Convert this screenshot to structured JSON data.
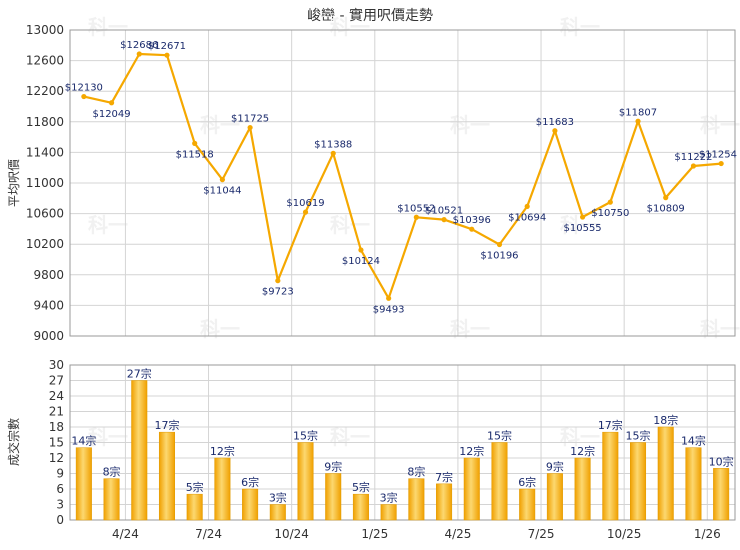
{
  "chart_data": [
    {
      "type": "line",
      "title": "峻巒 - 實用呎價走勢",
      "ylabel": "平均呎價",
      "ylim": [
        9000,
        13000
      ],
      "yticks": [
        9000,
        9400,
        9800,
        10200,
        10600,
        11000,
        11400,
        11800,
        12200,
        12600,
        13000
      ],
      "xticks": [
        "4/24",
        "7/24",
        "10/24",
        "1/25",
        "4/25",
        "7/25",
        "10/25",
        "1/26"
      ],
      "color": "#f5a800",
      "watermark": "科一",
      "values": [
        12130,
        12049,
        12686,
        12671,
        11518,
        11044,
        11725,
        9723,
        10619,
        11388,
        10124,
        9493,
        10552,
        10521,
        10396,
        10196,
        10694,
        11683,
        10555,
        10750,
        11807,
        10809,
        11222,
        11254
      ],
      "labels": [
        "$12130",
        "$12049",
        "$12686",
        "$12671",
        "$11518",
        "$11044",
        "$11725",
        "$9723",
        "$10619",
        "$11388",
        "$10124",
        "$9493",
        "$10552",
        "$10521",
        "$10396",
        "$10196",
        "$10694",
        "$11683",
        "$10555",
        "$10750",
        "$11807",
        "$10809",
        "$11222",
        "$11254"
      ]
    },
    {
      "type": "bar",
      "ylabel": "成交宗數",
      "ylim": [
        0,
        30
      ],
      "yticks": [
        0,
        3,
        6,
        9,
        12,
        15,
        18,
        21,
        24,
        27,
        30
      ],
      "xticks": [
        "4/24",
        "7/24",
        "10/24",
        "1/25",
        "4/25",
        "7/25",
        "10/25",
        "1/26"
      ],
      "color": "#f5a800",
      "values": [
        14,
        8,
        27,
        17,
        5,
        12,
        6,
        3,
        15,
        9,
        5,
        3,
        8,
        7,
        12,
        15,
        6,
        9,
        12,
        17,
        15,
        18,
        14,
        10
      ],
      "labels": [
        "14宗",
        "8宗",
        "27宗",
        "17宗",
        "5宗",
        "12宗",
        "6宗",
        "3宗",
        "15宗",
        "9宗",
        "5宗",
        "3宗",
        "8宗",
        "7宗",
        "12宗",
        "15宗",
        "6宗",
        "9宗",
        "12宗",
        "17宗",
        "15宗",
        "18宗",
        "14宗",
        "10宗"
      ]
    }
  ]
}
